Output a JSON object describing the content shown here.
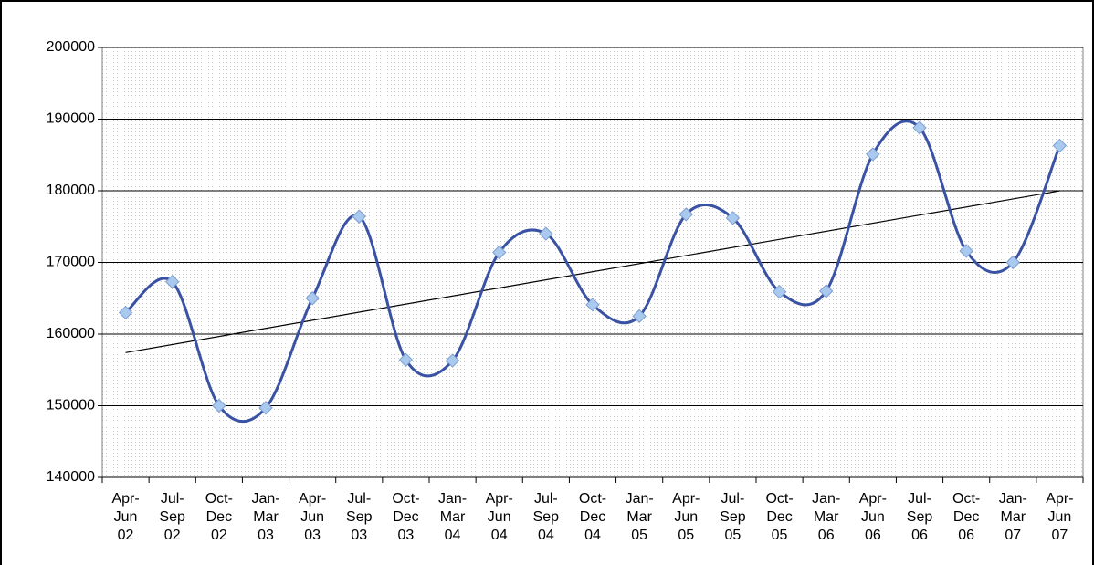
{
  "chart_data": {
    "type": "line",
    "categories": [
      "Apr-\nJun\n02",
      "Jul-\nSep\n02",
      "Oct-\nDec\n02",
      "Jan-\nMar\n03",
      "Apr-\nJun\n03",
      "Jul-\nSep\n03",
      "Oct-\nDec\n03",
      "Jan-\nMar\n04",
      "Apr-\nJun\n04",
      "Jul-\nSep\n04",
      "Oct-\nDec\n04",
      "Jan-\nMar\n05",
      "Apr-\nJun\n05",
      "Jul-\nSep\n05",
      "Oct-\nDec\n05",
      "Jan-\nMar\n06",
      "Apr-\nJun\n06",
      "Jul-\nSep\n06",
      "Oct-\nDec\n06",
      "Jan-\nMar\n07",
      "Apr-\nJun\n07"
    ],
    "values": [
      163000,
      167300,
      150000,
      149700,
      165000,
      176400,
      156400,
      156300,
      171400,
      174000,
      164100,
      162500,
      176700,
      176200,
      165900,
      166000,
      185100,
      188800,
      171600,
      170000,
      186300
    ],
    "color": "#3a52a3",
    "marker_color": "#a9c9ef",
    "trendline": "linear",
    "ylim": [
      140000,
      200000
    ],
    "yticks": [
      140000,
      150000,
      160000,
      170000,
      180000,
      190000,
      200000
    ],
    "grid": true
  }
}
